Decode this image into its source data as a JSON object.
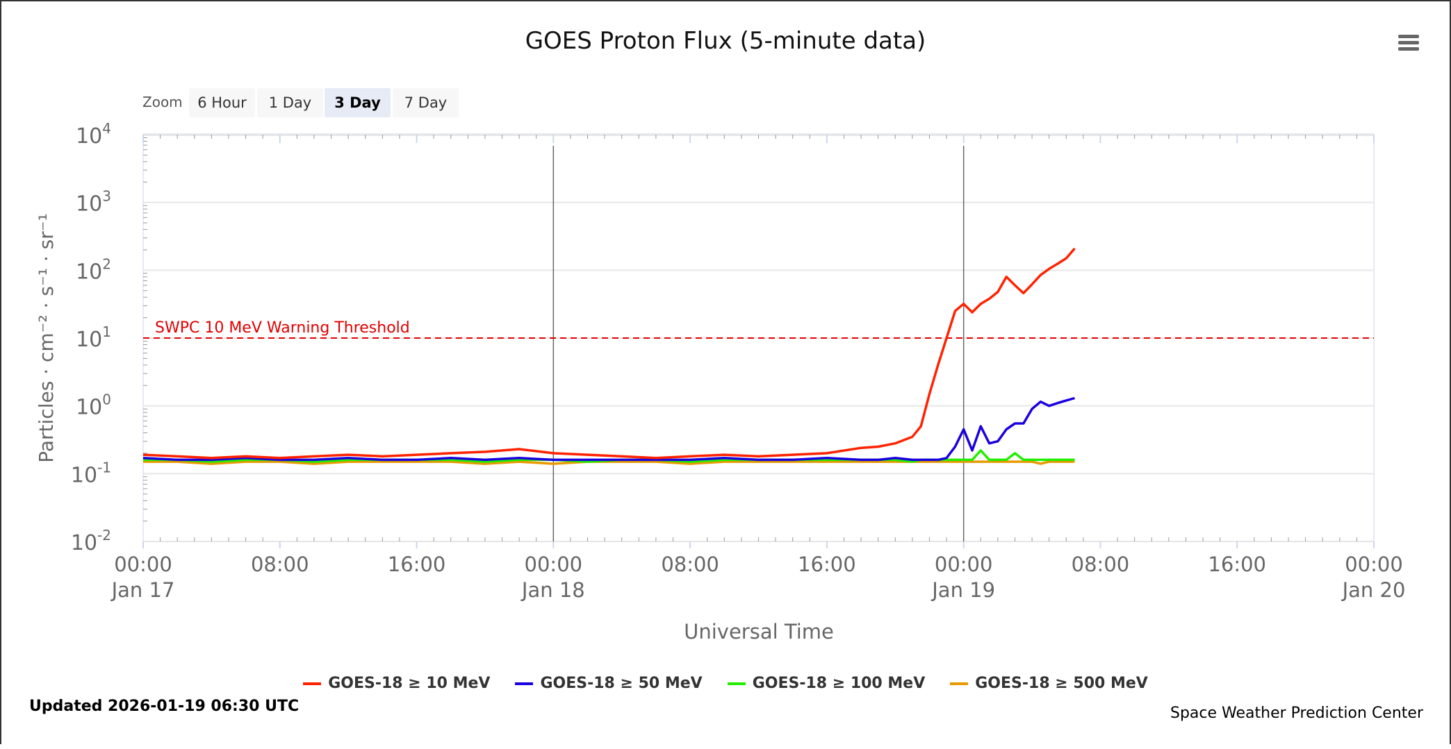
{
  "chart_data": {
    "type": "line",
    "title": "GOES Proton Flux (5-minute data)",
    "xlabel": "Universal Time",
    "ylabel": "Particles · cm⁻² · s⁻¹ · sr⁻¹",
    "yscale": "log",
    "ylim": [
      0.01,
      10000
    ],
    "xlim": [
      "2026-01-17T00:00",
      "2026-01-20T00:00"
    ],
    "grid": true,
    "legend_position": "bottom",
    "y_ticks": [
      {
        "base": "10",
        "exp": "4"
      },
      {
        "base": "10",
        "exp": "3"
      },
      {
        "base": "10",
        "exp": "2"
      },
      {
        "base": "10",
        "exp": "1"
      },
      {
        "base": "10",
        "exp": "0"
      },
      {
        "base": "10",
        "exp": "-1"
      },
      {
        "base": "10",
        "exp": "-2"
      }
    ],
    "x_ticks": [
      {
        "time": "00:00",
        "date": "Jan 17"
      },
      {
        "time": "08:00",
        "date": ""
      },
      {
        "time": "16:00",
        "date": ""
      },
      {
        "time": "00:00",
        "date": "Jan 18"
      },
      {
        "time": "08:00",
        "date": ""
      },
      {
        "time": "16:00",
        "date": ""
      },
      {
        "time": "00:00",
        "date": "Jan 19"
      },
      {
        "time": "08:00",
        "date": ""
      },
      {
        "time": "16:00",
        "date": ""
      },
      {
        "time": "00:00",
        "date": "Jan 20"
      }
    ],
    "threshold": {
      "label": "SWPC 10 MeV Warning Threshold",
      "value": 10,
      "color": "#e00000"
    },
    "day_lines": [
      "2026-01-18T00:00",
      "2026-01-19T00:00"
    ],
    "x": [
      "2026-01-17T00:00",
      "2026-01-17T02:00",
      "2026-01-17T04:00",
      "2026-01-17T06:00",
      "2026-01-17T08:00",
      "2026-01-17T10:00",
      "2026-01-17T12:00",
      "2026-01-17T14:00",
      "2026-01-17T16:00",
      "2026-01-17T18:00",
      "2026-01-17T20:00",
      "2026-01-17T22:00",
      "2026-01-18T00:00",
      "2026-01-18T02:00",
      "2026-01-18T04:00",
      "2026-01-18T06:00",
      "2026-01-18T08:00",
      "2026-01-18T10:00",
      "2026-01-18T12:00",
      "2026-01-18T14:00",
      "2026-01-18T16:00",
      "2026-01-18T18:00",
      "2026-01-18T19:00",
      "2026-01-18T20:00",
      "2026-01-18T21:00",
      "2026-01-18T21:30",
      "2026-01-18T22:00",
      "2026-01-18T22:30",
      "2026-01-18T23:00",
      "2026-01-18T23:30",
      "2026-01-19T00:00",
      "2026-01-19T00:30",
      "2026-01-19T01:00",
      "2026-01-19T01:30",
      "2026-01-19T02:00",
      "2026-01-19T02:30",
      "2026-01-19T03:00",
      "2026-01-19T03:30",
      "2026-01-19T04:00",
      "2026-01-19T04:30",
      "2026-01-19T05:00",
      "2026-01-19T05:30",
      "2026-01-19T06:00",
      "2026-01-19T06:30"
    ],
    "series": [
      {
        "name": "GOES-18 ≥ 10 MeV",
        "color": "#ff2200",
        "values": [
          0.19,
          0.18,
          0.17,
          0.18,
          0.17,
          0.18,
          0.19,
          0.18,
          0.19,
          0.2,
          0.21,
          0.23,
          0.2,
          0.19,
          0.18,
          0.17,
          0.18,
          0.19,
          0.18,
          0.19,
          0.2,
          0.24,
          0.25,
          0.28,
          0.35,
          0.5,
          1.5,
          4,
          10,
          25,
          32,
          24,
          32,
          38,
          48,
          80,
          60,
          46,
          62,
          85,
          105,
          125,
          150,
          210
        ]
      },
      {
        "name": "GOES-18 ≥ 50 MeV",
        "color": "#1a00e0",
        "values": [
          0.17,
          0.16,
          0.16,
          0.17,
          0.16,
          0.16,
          0.17,
          0.16,
          0.16,
          0.17,
          0.16,
          0.17,
          0.16,
          0.16,
          0.16,
          0.16,
          0.16,
          0.17,
          0.16,
          0.16,
          0.17,
          0.16,
          0.16,
          0.17,
          0.16,
          0.16,
          0.16,
          0.16,
          0.17,
          0.25,
          0.45,
          0.22,
          0.5,
          0.28,
          0.3,
          0.45,
          0.55,
          0.55,
          0.9,
          1.15,
          1.0,
          1.1,
          1.2,
          1.3
        ]
      },
      {
        "name": "GOES-18 ≥ 100 MeV",
        "color": "#22ee00",
        "values": [
          0.16,
          0.16,
          0.15,
          0.16,
          0.16,
          0.15,
          0.16,
          0.16,
          0.16,
          0.16,
          0.15,
          0.16,
          0.16,
          0.15,
          0.16,
          0.16,
          0.15,
          0.16,
          0.16,
          0.16,
          0.16,
          0.16,
          0.16,
          0.16,
          0.15,
          0.16,
          0.16,
          0.16,
          0.16,
          0.16,
          0.16,
          0.16,
          0.22,
          0.16,
          0.16,
          0.16,
          0.2,
          0.16,
          0.16,
          0.16,
          0.16,
          0.16,
          0.16,
          0.16
        ]
      },
      {
        "name": "GOES-18 ≥ 500 MeV",
        "color": "#e89a00",
        "values": [
          0.15,
          0.15,
          0.14,
          0.15,
          0.15,
          0.14,
          0.15,
          0.15,
          0.15,
          0.15,
          0.14,
          0.15,
          0.14,
          0.15,
          0.15,
          0.15,
          0.14,
          0.15,
          0.15,
          0.15,
          0.15,
          0.15,
          0.15,
          0.15,
          0.15,
          0.15,
          0.15,
          0.15,
          0.15,
          0.15,
          0.15,
          0.15,
          0.15,
          0.15,
          0.15,
          0.15,
          0.15,
          0.15,
          0.15,
          0.14,
          0.15,
          0.15,
          0.15,
          0.15
        ]
      }
    ]
  },
  "zoom": {
    "label": "Zoom",
    "buttons": [
      "6 Hour",
      "1 Day",
      "3 Day",
      "7 Day"
    ],
    "selected": "3 Day"
  },
  "footer": {
    "updated": "Updated 2026-01-19 06:30 UTC",
    "credits": "Space Weather Prediction Center"
  },
  "menu_icon": "hamburger-menu-icon"
}
